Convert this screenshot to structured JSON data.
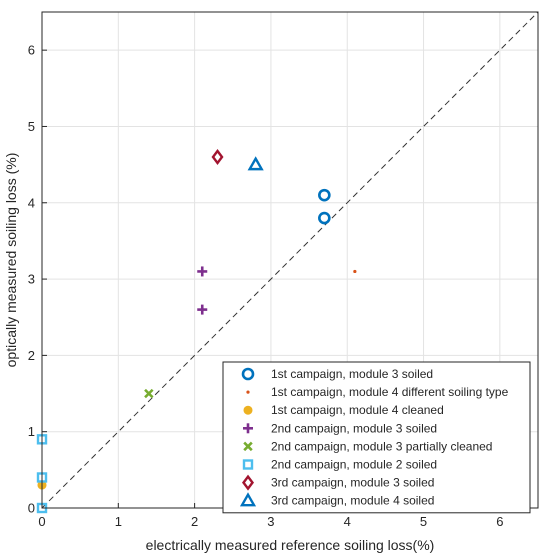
{
  "chart_data": {
    "type": "scatter",
    "xlabel": "electrically measured reference soiling loss(%)",
    "ylabel": "optically measured soiling loss (%)",
    "xlim": [
      0,
      6.5
    ],
    "ylim": [
      0,
      6.5
    ],
    "xticks": [
      "0",
      "1",
      "2",
      "3",
      "4",
      "5",
      "6"
    ],
    "yticks": [
      "0",
      "1",
      "2",
      "3",
      "4",
      "5",
      "6"
    ],
    "grid": true,
    "reference_line": {
      "style": "dashed",
      "from": [
        0,
        0
      ],
      "to": [
        6.5,
        6.5
      ],
      "color": "#333333"
    },
    "legend_position": "bottom-right",
    "series": [
      {
        "name": "1st campaign, module 3 soiled",
        "marker": "circle",
        "color": "#0072BD",
        "points": [
          [
            3.7,
            4.1
          ],
          [
            3.7,
            3.8
          ]
        ]
      },
      {
        "name": "1st campaign, module 4 different soiling type",
        "marker": "dot",
        "color": "#D95319",
        "points": [
          [
            4.1,
            3.1
          ]
        ]
      },
      {
        "name": "1st campaign, module 4 cleaned",
        "marker": "filled-circle",
        "color": "#EDB120",
        "points": [
          [
            0.0,
            0.3
          ]
        ]
      },
      {
        "name": "2nd campaign, module 3 soiled",
        "marker": "plus",
        "color": "#7E2F8E",
        "points": [
          [
            2.1,
            3.1
          ],
          [
            2.1,
            2.6
          ]
        ]
      },
      {
        "name": "2nd campaign, module 3 partially cleaned",
        "marker": "x",
        "color": "#77AC30",
        "points": [
          [
            1.4,
            1.5
          ]
        ]
      },
      {
        "name": "2nd campaign, module 2 soiled",
        "marker": "square",
        "color": "#4DBEEE",
        "points": [
          [
            0.0,
            0.9
          ],
          [
            0.0,
            0.4
          ],
          [
            0.0,
            0.0
          ]
        ]
      },
      {
        "name": "3rd campaign, module 3 soiled",
        "marker": "diamond",
        "color": "#A2142F",
        "points": [
          [
            2.3,
            4.6
          ]
        ]
      },
      {
        "name": "3rd campaign, module 4 soiled",
        "marker": "triangle",
        "color": "#0072BD",
        "points": [
          [
            2.8,
            4.5
          ]
        ]
      }
    ]
  }
}
